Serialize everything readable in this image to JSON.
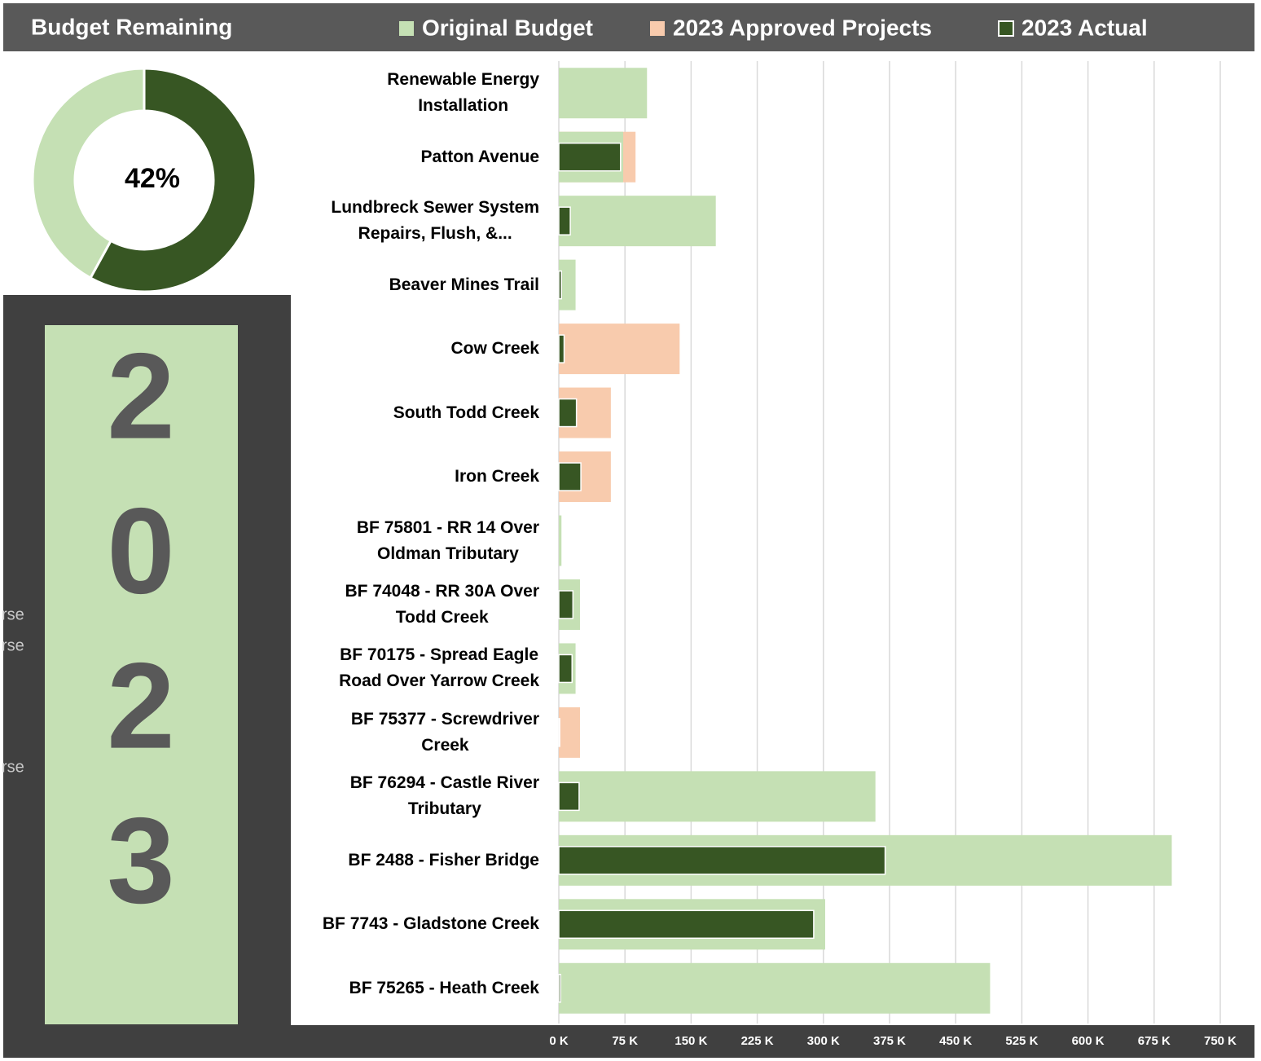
{
  "header": {
    "title": "Budget Remaining"
  },
  "year": {
    "digits": [
      "2",
      "0",
      "2",
      "3"
    ]
  },
  "fragments": [
    "rse",
    "rse",
    "rse"
  ],
  "chart_data": [
    {
      "type": "donut",
      "values": [
        58,
        42
      ],
      "value_labels": [
        null,
        "42%"
      ],
      "colors": [
        "#375623",
        "#c5e0b4"
      ]
    },
    {
      "type": "hbar",
      "categories": [
        "Renewable Energy\nInstallation",
        "Patton Avenue",
        "Lundbreck Sewer System\nRepairs, Flush, &...",
        "Beaver Mines Trail",
        "Cow Creek",
        "South Todd Creek",
        "Iron Creek",
        "BF 75801 - RR 14 Over\nOldman Tributary",
        "BF 74048 - RR 30A Over\nTodd Creek",
        "BF 70175 - Spread Eagle\nRoad Over Yarrow Creek",
        "BF 75377 - Screwdriver\nCreek",
        "BF 76294 - Castle River\nTributary",
        "BF 2488 - Fisher Bridge",
        "BF 7743 - Gladstone Creek",
        "BF 75265 - Heath Creek"
      ],
      "series": [
        {
          "name": "Original Budget",
          "color": "#c5e0b4",
          "values": [
            100000,
            73000,
            178000,
            19000,
            null,
            null,
            null,
            3000,
            24000,
            19000,
            null,
            359000,
            695000,
            302000,
            489000
          ]
        },
        {
          "name": "2023 Approved Projects",
          "color": "#f8cbad",
          "values": [
            null,
            87000,
            null,
            null,
            137000,
            59000,
            59000,
            null,
            null,
            null,
            24000,
            null,
            null,
            null,
            null
          ]
        },
        {
          "name": "2023 Actual",
          "color": "#375623",
          "values": [
            null,
            70000,
            13000,
            3000,
            6000,
            20000,
            25000,
            null,
            16000,
            15000,
            1000,
            23000,
            370000,
            289000,
            2000
          ]
        }
      ],
      "xlim": [
        0,
        750000
      ],
      "xticks": [
        {
          "value": 0,
          "label": "0 K"
        },
        {
          "value": 75000,
          "label": "75 K"
        },
        {
          "value": 150000,
          "label": "150 K"
        },
        {
          "value": 225000,
          "label": "225 K"
        },
        {
          "value": 300000,
          "label": "300 K"
        },
        {
          "value": 375000,
          "label": "375 K"
        },
        {
          "value": 450000,
          "label": "450 K"
        },
        {
          "value": 525000,
          "label": "525 K"
        },
        {
          "value": 600000,
          "label": "600 K"
        },
        {
          "value": 675000,
          "label": "675 K"
        },
        {
          "value": 750000,
          "label": "750 K"
        }
      ],
      "grid": true
    }
  ]
}
